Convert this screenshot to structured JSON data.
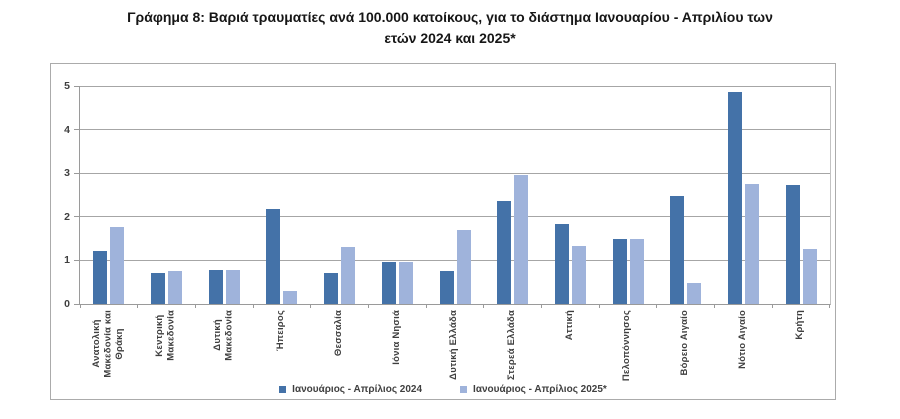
{
  "page": {
    "title_lines": [
      "Γράφημα 8: Βαριά τραυματίες ανά 100.000 κατοίκους, για το διάστημα Ιανουαρίου - Απριλίου των",
      "ετών 2024 και 2025*"
    ]
  },
  "chart_data": {
    "type": "bar",
    "title": "Γράφημα 8: Βαριά τραυματίες ανά 100.000 κατοίκους, για το διάστημα Ιανουαρίου - Απριλίου των ετών 2024 και 2025*",
    "categories": [
      "Ανατολική\nΜακεδονία και\nΘράκη",
      "Κεντρική\nΜακεδονία",
      "Δυτική\nΜακεδονία",
      "Ήπειρος",
      "Θεσσαλία",
      "Ιόνια Νησιά",
      "Δυτική Ελλάδα",
      "Στερεά Ελλάδα",
      "Αττική",
      "Πελοπόννησος",
      "Βόρειο Αιγαίο",
      "Νότιο Αιγαίο",
      "Κρήτη"
    ],
    "series": [
      {
        "name": "Ιανουάριος - Απρίλιος 2024",
        "color": "#4472a8",
        "values": [
          1.22,
          0.71,
          0.79,
          2.17,
          0.71,
          0.97,
          0.76,
          2.36,
          1.83,
          1.48,
          2.47,
          4.87,
          2.72
        ]
      },
      {
        "name": "Ιανουάριος - Απρίλιος 2025*",
        "color": "#9fb3db",
        "values": [
          1.76,
          0.76,
          0.79,
          0.29,
          1.31,
          0.97,
          1.7,
          2.95,
          1.32,
          1.48,
          0.48,
          2.75,
          1.27
        ]
      }
    ],
    "xlabel": "",
    "ylabel": "",
    "ylim": [
      0,
      5
    ],
    "y_ticks": [
      0,
      1,
      2,
      3,
      4,
      5
    ],
    "grid": true,
    "legend_position": "bottom",
    "colors": {
      "gridline": "#a6a6a6",
      "axis": "#9a9a9a",
      "frame_border": "#ababab",
      "text": "#3f3f3f",
      "title": "#161616"
    }
  }
}
